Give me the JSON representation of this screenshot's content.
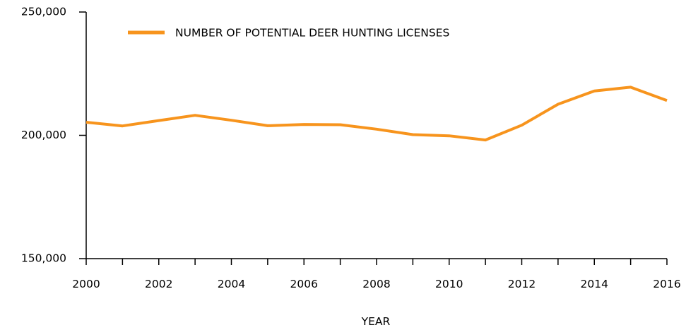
{
  "chart_data": {
    "type": "line",
    "title": "",
    "xlabel": "YEAR",
    "ylabel": "",
    "x": [
      2000,
      2001,
      2002,
      2003,
      2004,
      2005,
      2006,
      2007,
      2008,
      2009,
      2010,
      2011,
      2012,
      2013,
      2014,
      2015,
      2016
    ],
    "x_tick_values": [
      2000,
      2002,
      2004,
      2006,
      2008,
      2010,
      2012,
      2014,
      2016
    ],
    "x_tick_labels": [
      "2000",
      "2002",
      "2004",
      "2006",
      "2008",
      "2010",
      "2012",
      "2014",
      "2016"
    ],
    "y_tick_values": [
      150000,
      200000,
      250000
    ],
    "y_tick_labels": [
      "150,000",
      "200,000",
      "250,000"
    ],
    "xlim": [
      2000,
      2016
    ],
    "ylim": [
      150000,
      250000
    ],
    "grid": false,
    "legend_position": "top-left",
    "series": [
      {
        "name": "NUMBER OF POTENTIAL DEER HUNTING LICENSES",
        "color": "#F7941D",
        "values": [
          205300,
          203800,
          206000,
          208100,
          206100,
          203900,
          204400,
          204300,
          202500,
          200300,
          199800,
          198100,
          204100,
          212600,
          218000,
          219500,
          214100
        ]
      }
    ]
  }
}
